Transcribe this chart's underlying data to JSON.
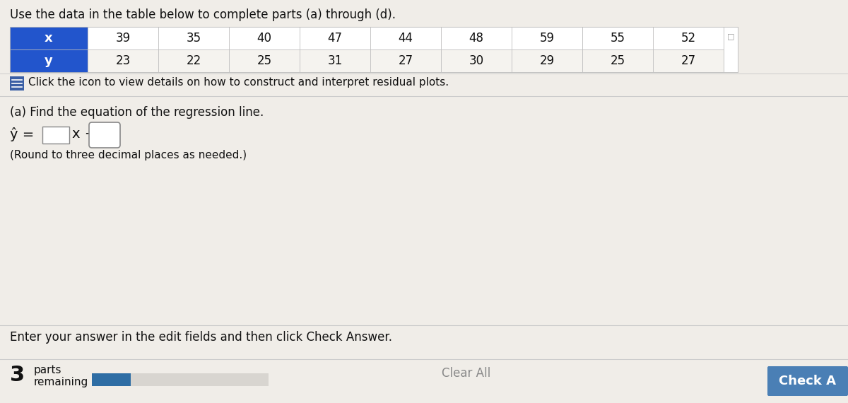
{
  "title": "Use the data in the table below to complete parts (a) through (d).",
  "x_label": "x",
  "y_label": "y",
  "x_values": [
    39,
    35,
    40,
    47,
    44,
    48,
    59,
    55,
    52
  ],
  "y_values": [
    23,
    22,
    25,
    31,
    27,
    30,
    29,
    25,
    27
  ],
  "icon_text": "Click the icon to view details on how to construct and interpret residual plots.",
  "part_a_text": "(a) Find the equation of the regression line.",
  "round_note": "(Round to three decimal places as needed.)",
  "enter_answer_text": "Enter your answer in the edit fields and then click Check Answer.",
  "clear_all_text": "Clear All",
  "check_answer_text": "Check A",
  "bg_color": "#f0ede8",
  "table_header_bg": "#2255cc",
  "table_header_text": "#ffffff",
  "table_cell_bg": "#ffffff",
  "table_alt_bg": "#f5f3ef",
  "check_btn_color": "#4a7fb5",
  "check_btn_text": "#ffffff",
  "progress_bar_bg": "#d8d5d0",
  "progress_bar_fill": "#2e6da4",
  "icon_color": "#3a5fa5",
  "border_color": "#bbbbbb",
  "text_color": "#111111",
  "divider_color": "#cccccc",
  "clear_all_color": "#888888"
}
